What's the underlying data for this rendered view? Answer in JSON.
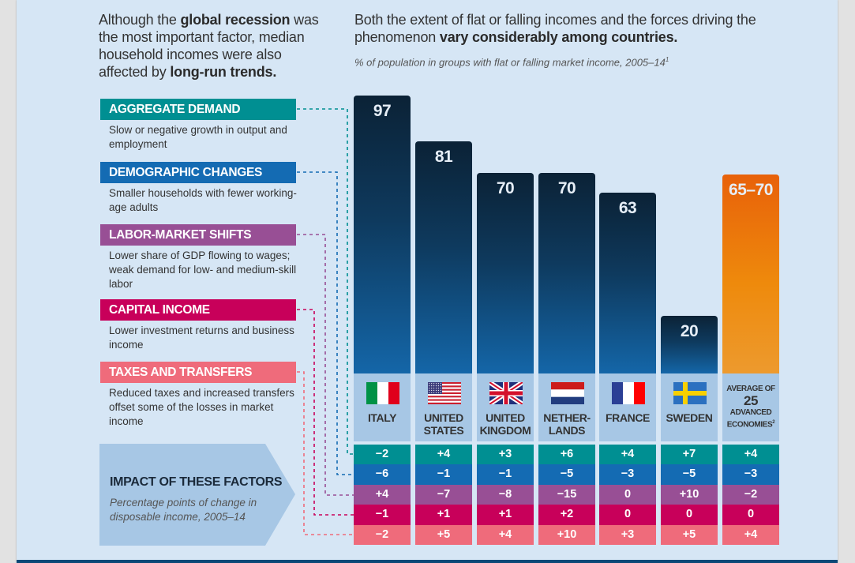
{
  "intro": {
    "text_1": "Although the ",
    "bold_1": "global recession",
    "text_2": " was the most important factor, median household incomes were also affected by ",
    "bold_2": "long-run trends."
  },
  "headline": {
    "text_1": "Both the extent of flat or falling incomes and the forces driving the phenomenon ",
    "bold_1": "vary considerably among countries."
  },
  "subhead": {
    "text": "% of population in groups with flat or falling market income, 2005–14",
    "footnote": "1"
  },
  "factors": [
    {
      "label": "AGGREGATE DEMAND",
      "description": "Slow or negative growth in output and employment",
      "color": "#008f92"
    },
    {
      "label": "DEMOGRAPHIC CHANGES",
      "description": "Smaller households with fewer working-age adults",
      "color": "#146bb3"
    },
    {
      "label": "LABOR-MARKET SHIFTS",
      "description": "Lower share of GDP flowing to wages; weak demand for low- and medium-skill labor",
      "color": "#984f95"
    },
    {
      "label": "CAPITAL INCOME",
      "description": "Lower investment returns and business income",
      "color": "#c8005a"
    },
    {
      "label": "TAXES AND TRANSFERS",
      "description": "Reduced taxes and increased transfers offset some of the losses in market income",
      "color": "#ef6b7b"
    }
  ],
  "impact": {
    "title": "IMPACT OF THESE FACTORS",
    "subtitle": "Percentage points of change in disposable income, 2005–14"
  },
  "chart_data": {
    "type": "bar",
    "title": "% of population in groups with flat or falling market income, 2005–14",
    "xlabel": "",
    "ylabel": "",
    "ylim": [
      0,
      100
    ],
    "categories": [
      "ITALY",
      "UNITED STATES",
      "UNITED KINGDOM",
      "NETHER-LANDS",
      "FRANCE",
      "SWEDEN",
      "AVERAGE OF 25 ADVANCED ECONOMIES"
    ],
    "category_lines": [
      [
        "ITALY"
      ],
      [
        "UNITED",
        "STATES"
      ],
      [
        "UNITED",
        "KINGDOM"
      ],
      [
        "NETHER-",
        "LANDS"
      ],
      [
        "FRANCE"
      ],
      [
        "SWEDEN"
      ]
    ],
    "values": [
      97,
      81,
      70,
      70,
      63,
      20,
      67.5
    ],
    "value_labels": [
      "97",
      "81",
      "70",
      "70",
      "63",
      "20",
      "65–70"
    ],
    "average_label": {
      "line_1": "AVERAGE OF",
      "line_2": "25",
      "line_3": "ADVANCED",
      "line_4": "ECONOMIES",
      "footnote": "2"
    },
    "flags": [
      "italy-flag",
      "us-flag",
      "uk-flag",
      "netherlands-flag",
      "france-flag",
      "sweden-flag",
      null
    ],
    "colors": {
      "country_bar": "#0e3a5e",
      "average_bar": "#ec7a0c"
    },
    "impact_table": {
      "rows": [
        "AGGREGATE DEMAND",
        "DEMOGRAPHIC CHANGES",
        "LABOR-MARKET SHIFTS",
        "CAPITAL INCOME",
        "TAXES AND TRANSFERS"
      ],
      "values": [
        [
          "−2",
          "+4",
          "+3",
          "+6",
          "+4",
          "+7",
          "+4"
        ],
        [
          "−6",
          "−1",
          "−1",
          "−5",
          "−3",
          "−5",
          "−3"
        ],
        [
          "+4",
          "−7",
          "−8",
          "−15",
          "0",
          "+10",
          "−2"
        ],
        [
          "−1",
          "+1",
          "+1",
          "+2",
          "0",
          "0",
          "0"
        ],
        [
          "−2",
          "+5",
          "+4",
          "+10",
          "+3",
          "+5",
          "+4"
        ]
      ]
    }
  }
}
